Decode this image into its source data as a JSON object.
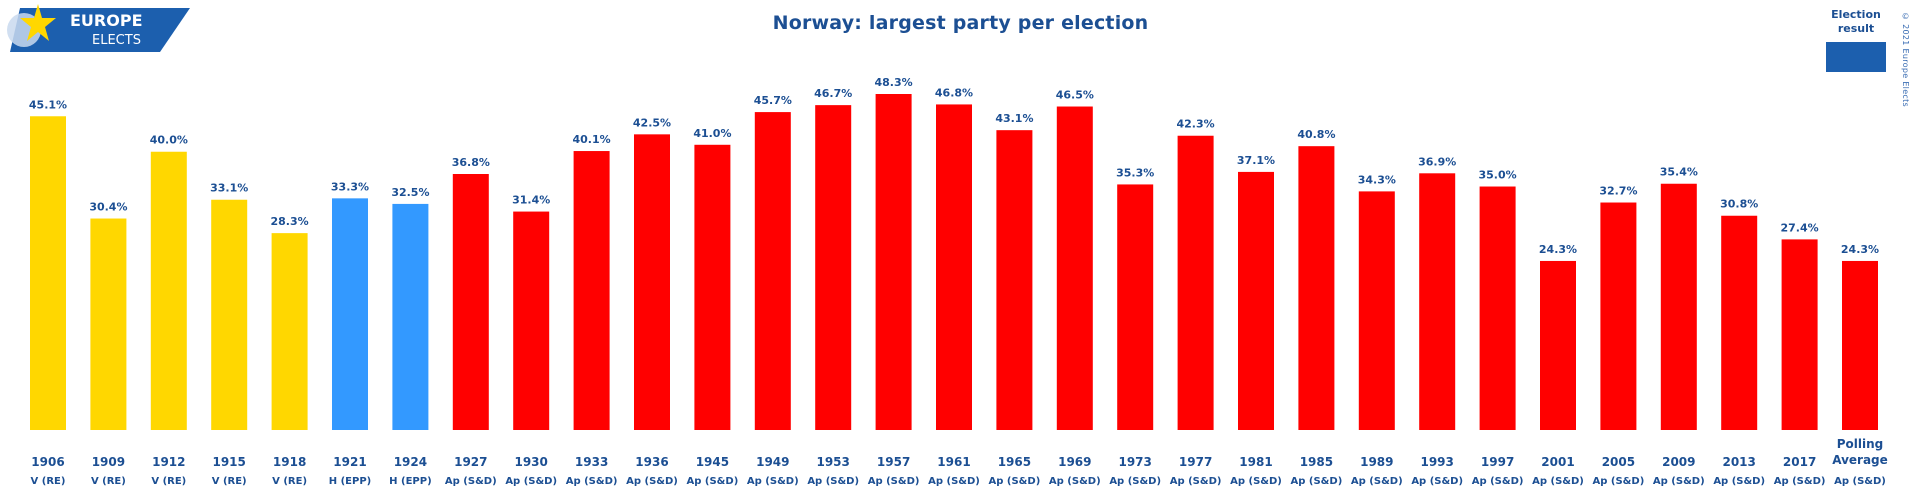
{
  "logo": {
    "line1": "EUROPE",
    "line2": "ELECTS"
  },
  "copyright": "© 2021 Europe Elects",
  "legend": {
    "label": "Election result",
    "color": "#1c5fae"
  },
  "chart_data": {
    "type": "bar",
    "title": "Norway: largest party per election",
    "xlabel": "",
    "ylabel": "",
    "ylim": [
      0,
      50
    ],
    "grid": false,
    "legend_position": "top-right",
    "categories": [
      "1906",
      "1909",
      "1912",
      "1915",
      "1918",
      "1921",
      "1924",
      "1927",
      "1930",
      "1933",
      "1936",
      "1945",
      "1949",
      "1953",
      "1957",
      "1961",
      "1965",
      "1969",
      "1973",
      "1977",
      "1981",
      "1985",
      "1989",
      "1993",
      "1997",
      "2001",
      "2005",
      "2009",
      "2013",
      "2017",
      "Polling Average"
    ],
    "parties": [
      "V (RE)",
      "V (RE)",
      "V (RE)",
      "V (RE)",
      "V (RE)",
      "H (EPP)",
      "H (EPP)",
      "Ap (S&D)",
      "Ap (S&D)",
      "Ap (S&D)",
      "Ap (S&D)",
      "Ap (S&D)",
      "Ap (S&D)",
      "Ap (S&D)",
      "Ap (S&D)",
      "Ap (S&D)",
      "Ap (S&D)",
      "Ap (S&D)",
      "Ap (S&D)",
      "Ap (S&D)",
      "Ap (S&D)",
      "Ap (S&D)",
      "Ap (S&D)",
      "Ap (S&D)",
      "Ap (S&D)",
      "Ap (S&D)",
      "Ap (S&D)",
      "Ap (S&D)",
      "Ap (S&D)",
      "Ap (S&D)",
      "Ap (S&D)"
    ],
    "values": [
      45.1,
      30.4,
      40.0,
      33.1,
      28.3,
      33.3,
      32.5,
      36.8,
      31.4,
      40.1,
      42.5,
      41.0,
      45.7,
      46.7,
      48.3,
      46.8,
      43.1,
      46.5,
      35.3,
      42.3,
      37.1,
      40.8,
      34.3,
      36.9,
      35.0,
      24.3,
      32.7,
      35.4,
      30.8,
      27.4,
      24.3
    ],
    "labels": [
      "45.1%",
      "30.4%",
      "40.0%",
      "33.1%",
      "28.3%",
      "33.3%",
      "32.5%",
      "36.8%",
      "31.4%",
      "40.1%",
      "42.5%",
      "41.0%",
      "45.7%",
      "46.7%",
      "48.3%",
      "46.8%",
      "43.1%",
      "46.5%",
      "35.3%",
      "42.3%",
      "37.1%",
      "40.8%",
      "34.3%",
      "36.9%",
      "35.0%",
      "24.3%",
      "32.7%",
      "35.4%",
      "30.8%",
      "27.4%",
      "24.3%"
    ],
    "party_colors": {
      "V (RE)": "#ffd700",
      "H (EPP)": "#3399ff",
      "Ap (S&D)": "#ff0000"
    }
  }
}
